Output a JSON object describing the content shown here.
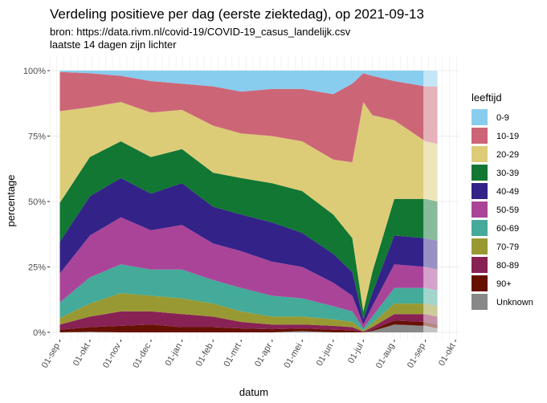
{
  "chart_data": {
    "type": "area",
    "stacked": "percent",
    "title": "Verdeling positieve per dag (eerste ziektedag), op 2021-09-13",
    "subtitle_lines": [
      "bron: https://data.rivm.nl/covid-19/COVID-19_casus_landelijk.csv",
      "laatste 14 dagen zijn lichter"
    ],
    "xlabel": "datum",
    "ylabel": "percentage",
    "y_ticks": [
      "0%",
      "25%",
      "50%",
      "75%",
      "100%"
    ],
    "x_ticks": [
      "01-sep",
      "01-okt",
      "01-nov",
      "01-dec",
      "01-jan",
      "01-feb",
      "01-mrt",
      "01-apr",
      "01-mei",
      "01-jun",
      "01-jul",
      "01-aug",
      "01-sep",
      "01-okt"
    ],
    "x_range": [
      "2020-08-22",
      "2021-10-05"
    ],
    "data_range": [
      "2020-09-01",
      "2021-09-13"
    ],
    "highlight_last_days": 14,
    "grid": true,
    "legend_position": "right",
    "legend_title": "leeftijd",
    "categories": [
      "0-9",
      "10-19",
      "20-29",
      "30-39",
      "40-49",
      "50-59",
      "60-69",
      "70-79",
      "80-89",
      "90+",
      "Unknown"
    ],
    "colors": [
      "#88CCEE",
      "#CC6677",
      "#DDCC77",
      "#117733",
      "#332288",
      "#AA4499",
      "#44AA99",
      "#999933",
      "#882255",
      "#661100",
      "#888888"
    ],
    "x": [
      "2020-09-01",
      "2020-10-01",
      "2020-11-01",
      "2020-12-01",
      "2021-01-01",
      "2021-02-01",
      "2021-03-01",
      "2021-04-01",
      "2021-05-01",
      "2021-06-01",
      "2021-06-20",
      "2021-07-01",
      "2021-07-10",
      "2021-08-01",
      "2021-09-01",
      "2021-09-13"
    ],
    "series": [
      {
        "name": "0-9",
        "values": [
          0.5,
          1.0,
          2.0,
          4.0,
          5.0,
          6.0,
          8.0,
          7.0,
          7.0,
          9.0,
          5.0,
          1.0,
          2.0,
          4.0,
          6.0,
          6.0
        ]
      },
      {
        "name": "10-19",
        "values": [
          15.0,
          13.0,
          10.0,
          12.0,
          10.0,
          15.0,
          16.0,
          18.0,
          20.0,
          25.0,
          30.0,
          11.0,
          15.0,
          15.0,
          21.0,
          22.0
        ]
      },
      {
        "name": "20-29",
        "values": [
          35.0,
          19.0,
          15.0,
          17.0,
          15.0,
          18.0,
          17.0,
          18.0,
          19.0,
          21.0,
          29.0,
          80.0,
          60.0,
          30.0,
          22.0,
          22.0
        ]
      },
      {
        "name": "30-39",
        "values": [
          15.0,
          15.0,
          14.0,
          14.0,
          13.0,
          13.0,
          14.0,
          15.0,
          16.0,
          15.0,
          13.0,
          3.0,
          8.0,
          14.0,
          15.0,
          15.0
        ]
      },
      {
        "name": "40-49",
        "values": [
          12.0,
          15.0,
          15.0,
          14.0,
          16.0,
          14.0,
          14.0,
          15.0,
          13.0,
          11.0,
          9.0,
          2.0,
          5.0,
          11.0,
          11.0,
          11.0
        ]
      },
      {
        "name": "50-59",
        "values": [
          11.0,
          16.0,
          18.0,
          15.0,
          17.0,
          14.0,
          14.0,
          13.0,
          12.0,
          9.0,
          6.0,
          1.5,
          4.0,
          9.0,
          8.0,
          8.0
        ]
      },
      {
        "name": "60-69",
        "values": [
          6.0,
          10.0,
          11.0,
          10.0,
          11.0,
          9.0,
          9.0,
          8.0,
          7.0,
          5.0,
          4.0,
          0.8,
          2.5,
          6.0,
          6.0,
          6.0
        ]
      },
      {
        "name": "70-79",
        "values": [
          2.5,
          5.0,
          7.0,
          6.0,
          6.0,
          5.0,
          4.0,
          3.0,
          3.0,
          2.5,
          2.0,
          0.4,
          1.5,
          4.0,
          4.0,
          4.0
        ]
      },
      {
        "name": "80-89",
        "values": [
          2.0,
          4.0,
          5.5,
          5.0,
          5.0,
          4.0,
          2.5,
          1.8,
          1.5,
          1.5,
          1.2,
          0.2,
          1.0,
          2.5,
          3.0,
          3.0
        ]
      },
      {
        "name": "90+",
        "values": [
          1.0,
          1.8,
          2.5,
          3.0,
          2.0,
          2.0,
          1.5,
          1.2,
          1.0,
          1.0,
          0.8,
          0.1,
          0.5,
          1.5,
          1.5,
          1.5
        ]
      },
      {
        "name": "Unknown",
        "values": [
          0.0,
          0.2,
          0.0,
          0.0,
          0.0,
          0.0,
          0.0,
          0.0,
          0.5,
          0.0,
          0.0,
          0.0,
          0.5,
          3.0,
          2.5,
          1.5
        ]
      }
    ]
  }
}
